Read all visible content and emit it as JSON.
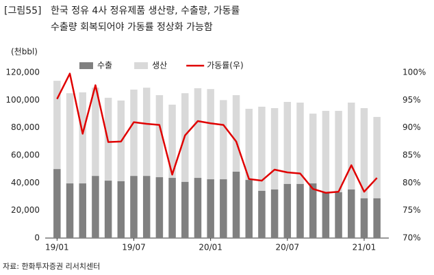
{
  "chart_data": {
    "type": "bar_line",
    "label": "[그림55]",
    "title": "한국 정유 4사 정유제품 생산량, 수출량, 가동률",
    "subtitle": "수출량 회복되어야 가동률 정상화 가능함",
    "y_unit": "(천bbl)",
    "source": "자료: 한화투자증권 리서치센터",
    "categories": [
      "19/01",
      null,
      null,
      null,
      null,
      null,
      "19/07",
      null,
      null,
      null,
      null,
      null,
      "20/01",
      null,
      null,
      null,
      null,
      null,
      "20/07",
      null,
      null,
      null,
      null,
      null,
      "21/01",
      null
    ],
    "series": [
      {
        "name": "수출",
        "color": "#808080",
        "type": "bar",
        "values": [
          50000,
          39600,
          39600,
          45000,
          41600,
          41200,
          45000,
          45000,
          44100,
          43600,
          40700,
          43600,
          42600,
          42600,
          48100,
          42100,
          34200,
          35200,
          39200,
          39200,
          39600,
          33200,
          33200,
          35200,
          28800,
          28800
        ]
      },
      {
        "name": "생산",
        "color": "#d9d9d9",
        "type": "bar",
        "values": [
          114000,
          105000,
          105600,
          109000,
          101700,
          99700,
          107600,
          109000,
          103600,
          96700,
          105000,
          108600,
          108000,
          100000,
          103600,
          93700,
          95200,
          94200,
          98700,
          98200,
          90200,
          92200,
          92200,
          98200,
          94200,
          87800
        ]
      },
      {
        "name": "가동률(우)",
        "color": "#e00000",
        "type": "line",
        "axis": "y2",
        "values": [
          95.2,
          99.8,
          88.9,
          97.7,
          87.4,
          87.5,
          91.0,
          90.7,
          90.5,
          81.5,
          88.6,
          91.2,
          90.8,
          90.5,
          87.5,
          80.7,
          80.4,
          82.4,
          81.9,
          81.7,
          78.9,
          78.2,
          78.4,
          83.2,
          78.4,
          80.9
        ]
      }
    ],
    "ylim": [
      0,
      120000
    ],
    "yticks": [
      0,
      {
        "value": 20000,
        "label": "20,000"
      },
      {
        "value": 40000,
        "label": "40,000"
      },
      {
        "value": 60000,
        "label": "60,000"
      },
      {
        "value": 80000,
        "label": "80,000"
      },
      {
        "value": 100000,
        "label": "100,000"
      },
      {
        "value": 120000,
        "label": "120,000"
      }
    ],
    "y2lim": [
      70,
      100
    ],
    "y2ticks": [
      {
        "value": 70,
        "label": "70%"
      },
      {
        "value": 75,
        "label": "75%"
      },
      {
        "value": 80,
        "label": "80%"
      },
      {
        "value": 85,
        "label": "85%"
      },
      {
        "value": 90,
        "label": "90%"
      },
      {
        "value": 95,
        "label": "95%"
      },
      {
        "value": 100,
        "label": "100%"
      }
    ],
    "grid": false,
    "legend": "top"
  }
}
